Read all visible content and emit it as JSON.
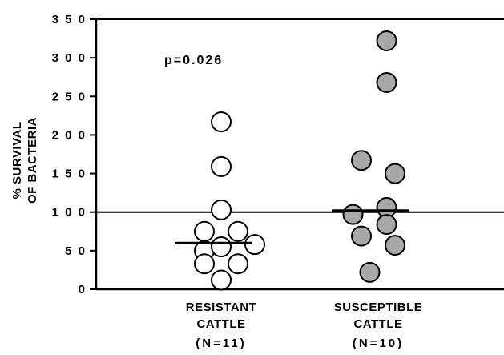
{
  "chart_data": {
    "type": "scatter",
    "title": "",
    "ylabel_lines": [
      "% SURVIVAL",
      "OF BACTERIA"
    ],
    "ylim": [
      0,
      350
    ],
    "yticks": [
      0,
      50,
      100,
      150,
      200,
      250,
      300,
      350
    ],
    "ytick_labels": [
      "0",
      "5 0",
      "1 0 0",
      "1 5 0",
      "2 0 0",
      "2 5 0",
      "3 0 0",
      "3 5 0"
    ],
    "reference_line": 100,
    "annotation": "p=0.026",
    "grid": false,
    "legend": "none",
    "colors": {
      "resistant_fill": "#ffffff",
      "susceptible_fill": "#a8a8a8",
      "stroke": "#000000"
    },
    "groups": [
      {
        "label_lines": [
          "RESISTANT",
          "CATTLE"
        ],
        "n_label": "(N=11)",
        "fill": "open",
        "median": 60,
        "points": [
          {
            "offset": 0,
            "y": 217
          },
          {
            "offset": 0,
            "y": 159
          },
          {
            "offset": 0,
            "y": 103
          },
          {
            "offset": -1,
            "y": 75
          },
          {
            "offset": 1,
            "y": 75
          },
          {
            "offset": -1,
            "y": 50
          },
          {
            "offset": 0,
            "y": 55
          },
          {
            "offset": 2,
            "y": 58
          },
          {
            "offset": -1,
            "y": 33
          },
          {
            "offset": 1,
            "y": 33
          },
          {
            "offset": 0,
            "y": 12
          }
        ]
      },
      {
        "label_lines": [
          "SUSCEPTIBLE",
          "CATTLE"
        ],
        "n_label": "(N=10)",
        "fill": "shaded",
        "median": 102,
        "points": [
          {
            "offset": 0.5,
            "y": 322
          },
          {
            "offset": 0.5,
            "y": 268
          },
          {
            "offset": -1,
            "y": 167
          },
          {
            "offset": 1,
            "y": 150
          },
          {
            "offset": -1.5,
            "y": 97
          },
          {
            "offset": 0.5,
            "y": 106
          },
          {
            "offset": 0.5,
            "y": 84
          },
          {
            "offset": -1,
            "y": 69
          },
          {
            "offset": 1,
            "y": 57
          },
          {
            "offset": -0.5,
            "y": 22
          }
        ]
      }
    ]
  }
}
